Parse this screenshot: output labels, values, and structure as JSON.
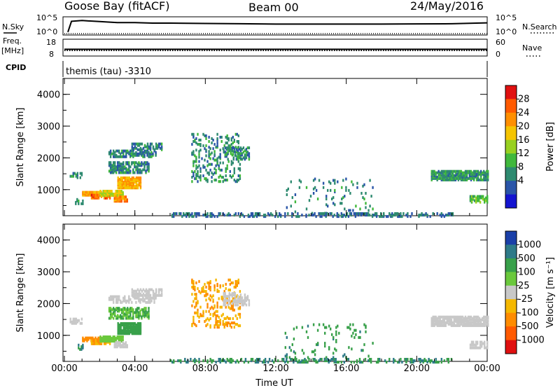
{
  "header": {
    "station": "Goose Bay (fitACF)",
    "beam": "Beam 00",
    "date": "24/May/2016"
  },
  "panels": {
    "noise_left": "N.Sky",
    "noise_right": "N.Search",
    "noise_ticks_left": [
      "10^5",
      "10^0"
    ],
    "noise_ticks_right": [
      "10^5",
      "10^0"
    ],
    "freq_label_1": "Freq.",
    "freq_label_2": "[MHz]",
    "freq_ticks": [
      "18",
      "8"
    ],
    "nave_label": "Nave",
    "nave_ticks": [
      "60",
      "0"
    ],
    "cpid_label": "CPID",
    "cpid_text": "themis (tau) -3310"
  },
  "chart_data": [
    {
      "type": "heatmap",
      "title": "Power",
      "xlabel": "Time UT",
      "ylabel": "Slant Range [km]",
      "colorbar_label": "Power [dB]",
      "colorbar_ticks": [
        "28",
        "24",
        "20",
        "16",
        "12",
        "8",
        "4"
      ],
      "colorbar_colors": [
        "#e01010",
        "#ff5a00",
        "#ff8f00",
        "#f5c400",
        "#98d020",
        "#40b83c",
        "#2e8a70",
        "#2a55a8",
        "#1414d0"
      ],
      "x_ticks": [
        "00:00",
        "04:00",
        "08:00",
        "12:00",
        "16:00",
        "20:00",
        "00:00"
      ],
      "y_ticks": [
        "4000",
        "3000",
        "2000",
        "1000"
      ],
      "x_range": [
        0,
        24
      ],
      "y_range": [
        180,
        4500
      ],
      "blobs": [
        {
          "t0": 0.3,
          "t1": 1.0,
          "r0": 1420,
          "r1": 1560,
          "v": 8,
          "d": 0.45
        },
        {
          "t0": 0.6,
          "t1": 1.0,
          "r0": 600,
          "r1": 760,
          "v": 8,
          "d": 0.4
        },
        {
          "t0": 1.0,
          "t1": 2.2,
          "r0": 870,
          "r1": 1000,
          "v": 22,
          "d": 0.85
        },
        {
          "t0": 1.5,
          "t1": 2.6,
          "r0": 780,
          "r1": 900,
          "v": 27,
          "d": 0.85
        },
        {
          "t0": 2.0,
          "t1": 3.3,
          "r0": 860,
          "r1": 1000,
          "v": 18,
          "d": 0.8
        },
        {
          "t0": 3.0,
          "t1": 4.3,
          "r0": 1100,
          "r1": 1450,
          "v": 22,
          "d": 0.85
        },
        {
          "t0": 2.8,
          "t1": 3.6,
          "r0": 680,
          "r1": 820,
          "v": 24,
          "d": 0.8
        },
        {
          "t0": 2.5,
          "t1": 4.8,
          "r0": 1580,
          "r1": 1900,
          "v": 8,
          "d": 0.55
        },
        {
          "t0": 2.5,
          "t1": 5.2,
          "r0": 2080,
          "r1": 2300,
          "v": 7,
          "d": 0.55
        },
        {
          "t0": 3.8,
          "t1": 5.5,
          "r0": 2300,
          "r1": 2500,
          "v": 7,
          "d": 0.6
        },
        {
          "t0": 7.2,
          "t1": 10.0,
          "r0": 1300,
          "r1": 2800,
          "v": 8,
          "d": 0.18
        },
        {
          "t0": 9.0,
          "t1": 10.5,
          "r0": 2000,
          "r1": 2400,
          "v": 8,
          "d": 0.45
        },
        {
          "t0": 12.5,
          "t1": 17.5,
          "r0": 300,
          "r1": 1400,
          "v": 8,
          "d": 0.05
        },
        {
          "t0": 20.8,
          "t1": 24.0,
          "r0": 1350,
          "r1": 1650,
          "v": 9,
          "d": 0.8
        },
        {
          "t0": 23.0,
          "t1": 24.0,
          "r0": 650,
          "r1": 850,
          "v": 12,
          "d": 0.6
        },
        {
          "t0": 6.0,
          "t1": 22.0,
          "r0": 200,
          "r1": 320,
          "v": 6,
          "d": 0.35
        }
      ]
    },
    {
      "type": "heatmap",
      "title": "Velocity",
      "xlabel": "Time UT",
      "ylabel": "Slant Range [km]",
      "colorbar_label": "Velocity [m s⁻¹]",
      "colorbar_ticks": [
        "1000",
        "500",
        "100",
        "25",
        "-25",
        "-100",
        "-500",
        "-1000"
      ],
      "colorbar_colors": [
        "#1a3fa8",
        "#2e7a88",
        "#38a04a",
        "#6ac83c",
        "#c8c8c8",
        "#f5b800",
        "#ff8c00",
        "#ff5a00",
        "#e01010"
      ],
      "x_ticks": [
        "00:00",
        "04:00",
        "08:00",
        "12:00",
        "16:00",
        "20:00",
        "00:00"
      ],
      "y_ticks": [
        "4000",
        "3000",
        "2000",
        "1000"
      ],
      "x_range": [
        0,
        24
      ],
      "y_range": [
        180,
        4500
      ],
      "blobs": [
        {
          "t0": 0.3,
          "t1": 1.0,
          "r0": 1420,
          "r1": 1560,
          "v": 0,
          "d": 0.45
        },
        {
          "t0": 0.6,
          "t1": 1.0,
          "r0": 600,
          "r1": 760,
          "v": 300,
          "d": 0.4
        },
        {
          "t0": 1.0,
          "t1": 2.2,
          "r0": 870,
          "r1": 1000,
          "v": -200,
          "d": 0.85
        },
        {
          "t0": 1.5,
          "t1": 2.6,
          "r0": 780,
          "r1": 900,
          "v": -60,
          "d": 0.85
        },
        {
          "t0": 2.0,
          "t1": 3.3,
          "r0": 860,
          "r1": 1000,
          "v": 40,
          "d": 0.8
        },
        {
          "t0": 3.0,
          "t1": 4.3,
          "r0": 1100,
          "r1": 1450,
          "v": 150,
          "d": 0.85
        },
        {
          "t0": 2.8,
          "t1": 3.6,
          "r0": 680,
          "r1": 820,
          "v": 0,
          "d": 0.8
        },
        {
          "t0": 2.5,
          "t1": 4.8,
          "r0": 1580,
          "r1": 1900,
          "v": 60,
          "d": 0.55
        },
        {
          "t0": 2.5,
          "t1": 5.2,
          "r0": 2080,
          "r1": 2300,
          "v": 0,
          "d": 0.55
        },
        {
          "t0": 3.8,
          "t1": 5.5,
          "r0": 2300,
          "r1": 2500,
          "v": 0,
          "d": 0.6
        },
        {
          "t0": 7.2,
          "t1": 10.0,
          "r0": 1300,
          "r1": 2800,
          "v": -60,
          "d": 0.18
        },
        {
          "t0": 9.0,
          "t1": 10.5,
          "r0": 2000,
          "r1": 2400,
          "v": 0,
          "d": 0.45
        },
        {
          "t0": 12.5,
          "t1": 17.5,
          "r0": 300,
          "r1": 1400,
          "v": 250,
          "d": 0.05
        },
        {
          "t0": 20.8,
          "t1": 24.0,
          "r0": 1350,
          "r1": 1650,
          "v": 0,
          "d": 0.8
        },
        {
          "t0": 23.0,
          "t1": 24.0,
          "r0": 650,
          "r1": 850,
          "v": 0,
          "d": 0.6
        },
        {
          "t0": 6.0,
          "t1": 22.0,
          "r0": 200,
          "r1": 320,
          "v": 300,
          "d": 0.35
        }
      ]
    }
  ],
  "noise_series": {
    "x": [
      0.2,
      0.4,
      1,
      2,
      3,
      4,
      5,
      6,
      8,
      10,
      12,
      14,
      16,
      18,
      20,
      22,
      24
    ],
    "level": [
      0.1,
      0.8,
      0.85,
      0.78,
      0.72,
      0.72,
      0.68,
      0.68,
      0.66,
      0.64,
      0.62,
      0.62,
      0.62,
      0.62,
      0.63,
      0.64,
      0.7
    ]
  },
  "freq_series": {
    "level": 0.38
  },
  "nave_series": {
    "level": 0.3
  }
}
